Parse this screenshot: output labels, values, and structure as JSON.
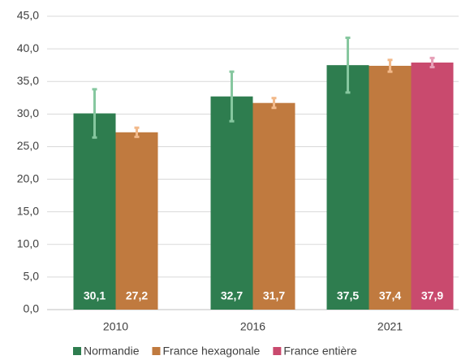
{
  "chart_data": {
    "type": "bar",
    "categories": [
      "2010",
      "2016",
      "2021"
    ],
    "series": [
      {
        "name": "Normandie",
        "color": "#2e7d4f",
        "error_color": "#86c79f",
        "values": [
          30.1,
          32.7,
          37.5
        ],
        "value_labels": [
          "30,1",
          "32,7",
          "37,5"
        ],
        "errors": [
          3.7,
          3.8,
          4.2
        ]
      },
      {
        "name": "France hexagonale",
        "color": "#c07a3f",
        "error_color": "#f2b98a",
        "values": [
          27.2,
          31.7,
          37.4
        ],
        "value_labels": [
          "27,2",
          "31,7",
          "37,4"
        ],
        "errors": [
          0.7,
          0.75,
          0.9
        ]
      },
      {
        "name": "France entière",
        "color": "#c94a6e",
        "error_color": "#e7a0b8",
        "values": [
          null,
          null,
          37.9
        ],
        "value_labels": [
          null,
          null,
          "37,9"
        ],
        "errors": [
          null,
          null,
          0.7
        ]
      }
    ],
    "ylim": [
      0,
      45
    ],
    "yticks": [
      {
        "value": 0,
        "label": "0,0"
      },
      {
        "value": 5,
        "label": "5,0"
      },
      {
        "value": 10,
        "label": "10,0"
      },
      {
        "value": 15,
        "label": "15,0"
      },
      {
        "value": 20,
        "label": "20,0"
      },
      {
        "value": 25,
        "label": "25,0"
      },
      {
        "value": 30,
        "label": "30,0"
      },
      {
        "value": 35,
        "label": "35,0"
      },
      {
        "value": 40,
        "label": "40,0"
      },
      {
        "value": 45,
        "label": "45,0"
      }
    ],
    "grid": true,
    "legend": "bottom"
  }
}
